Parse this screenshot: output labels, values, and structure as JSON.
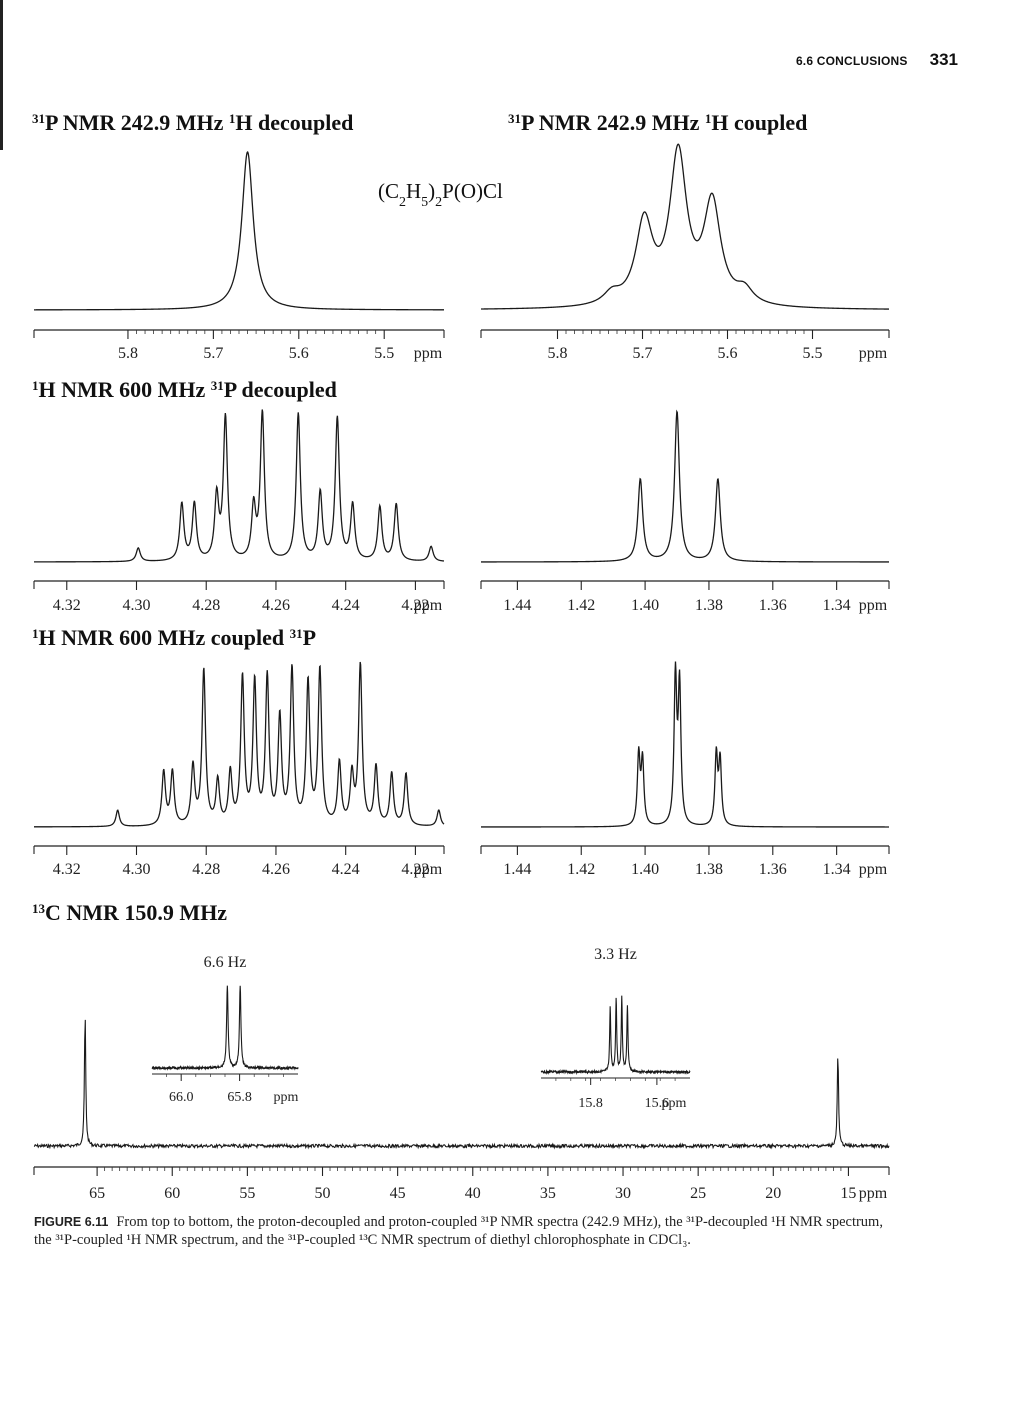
{
  "header": {
    "section": "6.6 CONCLUSIONS",
    "page_number": "331"
  },
  "compound": {
    "prefix": "(C",
    "s1": "2",
    "mid1": "H",
    "s2": "5",
    "mid2": ")",
    "s3": "2",
    "suffix": "P(O)Cl"
  },
  "caption": {
    "figure_label": "FIGURE 6.11",
    "text": "From top to bottom, the proton-decoupled and proton-coupled ³¹P NMR spectra (242.9 MHz), the ³¹P-decoupled ¹H NMR spectrum, the ³¹P-coupled ¹H NMR spectrum, and the ³¹P-coupled ¹³C NMR spectrum of diethyl chlorophosphate in CDCl₃."
  },
  "chart_data": [
    {
      "type": "line",
      "title": {
        "sup1": "31",
        "part1": "P NMR 242.9 MHz ",
        "sup2": "1",
        "part2": "H decoupled"
      },
      "xlabel": "ppm",
      "reversed_x": true,
      "xlim": [
        5.43,
        5.91
      ],
      "ticks": [
        "5.8",
        "5.7",
        "5.6",
        "5.5"
      ],
      "tick_values": [
        5.8,
        5.7,
        5.6,
        5.5
      ],
      "series": [
        {
          "peaks": [
            {
              "center": 5.66,
              "height": 1.0,
              "width": 0.008
            }
          ]
        }
      ]
    },
    {
      "type": "line",
      "title": {
        "sup1": "31",
        "part1": "P NMR 242.9 MHz ",
        "sup2": "1",
        "part2": "H coupled"
      },
      "xlabel": "ppm",
      "reversed_x": true,
      "xlim": [
        5.41,
        5.89
      ],
      "ticks": [
        "5.8",
        "5.7",
        "5.6",
        "5.5"
      ],
      "tick_values": [
        5.8,
        5.7,
        5.6,
        5.5
      ],
      "series": [
        {
          "peaks": [
            {
              "center": 5.736,
              "height": 0.07,
              "width": 0.012
            },
            {
              "center": 5.698,
              "height": 0.52,
              "width": 0.012
            },
            {
              "center": 5.658,
              "height": 0.95,
              "width": 0.012
            },
            {
              "center": 5.618,
              "height": 0.64,
              "width": 0.012
            },
            {
              "center": 5.58,
              "height": 0.09,
              "width": 0.012
            }
          ]
        }
      ]
    },
    {
      "type": "line",
      "title": {
        "sup1": "1",
        "part1": "H NMR 600 MHz ",
        "sup2": "31",
        "part2": "P decoupled"
      },
      "xlabel": "ppm",
      "reversed_x": true,
      "xlim": [
        4.2118,
        4.3294
      ],
      "ticks": [
        "4.32",
        "4.30",
        "4.28",
        "4.26",
        "4.24",
        "4.22"
      ],
      "tick_values": [
        4.32,
        4.3,
        4.28,
        4.26,
        4.24,
        4.22
      ],
      "series": [
        {
          "peaks": [
            {
              "center": 4.2995,
              "height": 0.09,
              "width": 0.0007
            },
            {
              "center": 4.287,
              "height": 0.38,
              "width": 0.0007
            },
            {
              "center": 4.2834,
              "height": 0.38,
              "width": 0.0007
            },
            {
              "center": 4.277,
              "height": 0.42,
              "width": 0.0007
            },
            {
              "center": 4.2745,
              "height": 0.95,
              "width": 0.0007
            },
            {
              "center": 4.2664,
              "height": 0.35,
              "width": 0.0007
            },
            {
              "center": 4.2639,
              "height": 0.98,
              "width": 0.0007
            },
            {
              "center": 4.2536,
              "height": 0.98,
              "width": 0.0007
            },
            {
              "center": 4.2473,
              "height": 0.45,
              "width": 0.0007
            },
            {
              "center": 4.2424,
              "height": 0.95,
              "width": 0.0007
            },
            {
              "center": 4.238,
              "height": 0.37,
              "width": 0.0007
            },
            {
              "center": 4.2302,
              "height": 0.36,
              "width": 0.0007
            },
            {
              "center": 4.2255,
              "height": 0.38,
              "width": 0.0007
            },
            {
              "center": 4.2155,
              "height": 0.1,
              "width": 0.0007
            }
          ]
        }
      ]
    },
    {
      "type": "line",
      "title": null,
      "xlabel": "ppm",
      "reversed_x": true,
      "xlim": [
        1.3236,
        1.4514
      ],
      "ticks": [
        "1.44",
        "1.42",
        "1.40",
        "1.38",
        "1.36",
        "1.34"
      ],
      "tick_values": [
        1.44,
        1.42,
        1.4,
        1.38,
        1.36,
        1.34
      ],
      "series": [
        {
          "peaks": [
            {
              "center": 1.4015,
              "height": 0.55,
              "width": 0.0009
            },
            {
              "center": 1.39,
              "height": 1.0,
              "width": 0.0009
            },
            {
              "center": 1.3772,
              "height": 0.55,
              "width": 0.0009
            }
          ]
        }
      ]
    },
    {
      "type": "line",
      "title": {
        "sup1": "1",
        "part1": "H NMR 600 MHz coupled ",
        "sup2": "31",
        "part2": "P"
      },
      "xlabel": "ppm",
      "reversed_x": true,
      "xlim": [
        4.2118,
        4.3294
      ],
      "ticks": [
        "4.32",
        "4.30",
        "4.28",
        "4.26",
        "4.24",
        "4.22"
      ],
      "tick_values": [
        4.32,
        4.3,
        4.28,
        4.26,
        4.24,
        4.22
      ],
      "series": [
        {
          "peaks": [
            {
              "center": 4.3054,
              "height": 0.1,
              "width": 0.0006
            },
            {
              "center": 4.2922,
              "height": 0.33,
              "width": 0.0006
            },
            {
              "center": 4.2897,
              "height": 0.33,
              "width": 0.0006
            },
            {
              "center": 4.2838,
              "height": 0.36,
              "width": 0.0006
            },
            {
              "center": 4.2807,
              "height": 0.95,
              "width": 0.0006
            },
            {
              "center": 4.2767,
              "height": 0.27,
              "width": 0.0006
            },
            {
              "center": 4.2731,
              "height": 0.32,
              "width": 0.0006
            },
            {
              "center": 4.2696,
              "height": 0.9,
              "width": 0.0006
            },
            {
              "center": 4.2661,
              "height": 0.87,
              "width": 0.0006
            },
            {
              "center": 4.2625,
              "height": 0.9,
              "width": 0.0006
            },
            {
              "center": 4.2589,
              "height": 0.65,
              "width": 0.0006
            },
            {
              "center": 4.2554,
              "height": 0.95,
              "width": 0.0006
            },
            {
              "center": 4.2508,
              "height": 0.87,
              "width": 0.0006
            },
            {
              "center": 4.2474,
              "height": 0.95,
              "width": 0.0006
            },
            {
              "center": 4.2418,
              "height": 0.38,
              "width": 0.0006
            },
            {
              "center": 4.2382,
              "height": 0.3,
              "width": 0.0006
            },
            {
              "center": 4.2358,
              "height": 0.98,
              "width": 0.0006
            },
            {
              "center": 4.2313,
              "height": 0.36,
              "width": 0.0006
            },
            {
              "center": 4.2268,
              "height": 0.32,
              "width": 0.0006
            },
            {
              "center": 4.2227,
              "height": 0.32,
              "width": 0.0006
            },
            {
              "center": 4.2133,
              "height": 0.1,
              "width": 0.0006
            }
          ]
        }
      ]
    },
    {
      "type": "line",
      "title": null,
      "xlabel": "ppm",
      "reversed_x": true,
      "xlim": [
        1.3236,
        1.4514
      ],
      "ticks": [
        "1.44",
        "1.42",
        "1.40",
        "1.38",
        "1.36",
        "1.34"
      ],
      "tick_values": [
        1.44,
        1.42,
        1.4,
        1.38,
        1.36,
        1.34
      ],
      "series": [
        {
          "peaks": [
            {
              "center": 1.402,
              "height": 0.47,
              "width": 0.0005
            },
            {
              "center": 1.4008,
              "height": 0.43,
              "width": 0.0005
            },
            {
              "center": 1.3905,
              "height": 0.98,
              "width": 0.0005
            },
            {
              "center": 1.3892,
              "height": 0.92,
              "width": 0.0005
            },
            {
              "center": 1.3777,
              "height": 0.47,
              "width": 0.0005
            },
            {
              "center": 1.3765,
              "height": 0.43,
              "width": 0.0005
            }
          ]
        }
      ]
    },
    {
      "type": "line",
      "title": {
        "sup1": "13",
        "part1": "C NMR 150.9 MHz"
      },
      "xlabel": "ppm",
      "reversed_x": true,
      "xlim": [
        12.3,
        69.2
      ],
      "ticks": [
        "65",
        "60",
        "55",
        "50",
        "45",
        "40",
        "35",
        "30",
        "25",
        "20",
        "15"
      ],
      "tick_values": [
        65,
        60,
        55,
        50,
        45,
        40,
        35,
        30,
        25,
        20,
        15
      ],
      "series": [
        {
          "peaks": [
            {
              "center": 65.8,
              "height": 1.0,
              "width": 0.05
            },
            {
              "center": 15.7,
              "height": 0.7,
              "width": 0.05
            }
          ]
        }
      ],
      "insets": [
        {
          "label": "6.6 Hz",
          "xlabel": "ppm",
          "ticks": [
            "66.0",
            "65.8"
          ],
          "tick_values": [
            66.0,
            65.8
          ],
          "xlim": [
            65.6,
            66.1
          ],
          "peaks": [
            {
              "center": 65.842,
              "height": 0.92,
              "width": 0.003
            },
            {
              "center": 65.798,
              "height": 0.92,
              "width": 0.003
            }
          ]
        },
        {
          "label": "3.3 Hz",
          "xlabel": "ppm",
          "ticks": [
            "15.8",
            "15.6"
          ],
          "tick_values": [
            15.8,
            15.6
          ],
          "xlim": [
            15.5,
            15.95
          ],
          "peaks": [
            {
              "center": 15.741,
              "height": 0.7,
              "width": 0.002
            },
            {
              "center": 15.723,
              "height": 0.8,
              "width": 0.002
            },
            {
              "center": 15.706,
              "height": 0.8,
              "width": 0.002
            },
            {
              "center": 15.689,
              "height": 0.72,
              "width": 0.002
            }
          ]
        }
      ]
    }
  ]
}
